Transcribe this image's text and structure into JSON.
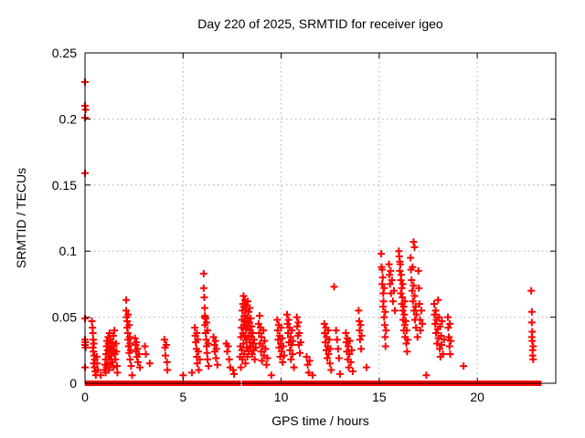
{
  "chart_data": {
    "type": "scatter",
    "title": "Day 220 of 2025, SRMTID for receiver igeo",
    "xlabel": "GPS time / hours",
    "ylabel": "SRMTID / TECUs",
    "xlim": [
      0,
      24
    ],
    "ylim": [
      0,
      0.25
    ],
    "xticks": {
      "values": [
        0,
        5,
        10,
        15,
        20
      ],
      "labels": [
        "0",
        "5",
        "10",
        "15",
        "20"
      ]
    },
    "yticks": {
      "values": [
        0,
        0.05,
        0.1,
        0.15,
        0.2,
        0.25
      ],
      "labels": [
        "0",
        "0.05",
        "0.1",
        "0.15",
        "0.2",
        "0.25"
      ]
    },
    "grid": {
      "on": true,
      "color": "#a8a8a8",
      "style": "dotted"
    },
    "legend": "none",
    "marker": {
      "shape": "plus",
      "color": "#ff0000",
      "size": 8,
      "stroke": 2
    },
    "baseline_value": 0,
    "baseline_segments": [
      [
        0.08,
        0.42
      ],
      [
        0.52,
        0.95
      ],
      [
        1.0,
        2.18
      ],
      [
        2.3,
        3.05
      ],
      [
        3.1,
        3.92
      ],
      [
        4.0,
        4.3
      ],
      [
        4.42,
        5.32
      ],
      [
        5.45,
        6.12
      ],
      [
        6.2,
        7.0
      ],
      [
        7.05,
        7.85
      ],
      [
        8.1,
        8.38
      ],
      [
        8.52,
        9.3
      ],
      [
        9.42,
        10.3
      ],
      [
        10.35,
        11.15
      ],
      [
        11.3,
        12.12
      ],
      [
        12.2,
        12.62
      ],
      [
        12.72,
        13.58
      ],
      [
        13.65,
        14.3
      ],
      [
        14.4,
        15.42
      ],
      [
        15.55,
        16.55
      ],
      [
        16.68,
        17.0
      ],
      [
        17.05,
        18.2
      ],
      [
        18.3,
        19.6
      ],
      [
        19.65,
        22.55
      ],
      [
        22.62,
        23.0
      ],
      [
        23.05,
        23.18
      ]
    ],
    "points": [
      [
        0.0,
        0.228
      ],
      [
        0.0,
        0.21
      ],
      [
        0.03,
        0.207
      ],
      [
        0.0,
        0.201
      ],
      [
        0.0,
        0.159
      ],
      [
        0.0,
        0.049
      ],
      [
        0.0,
        0.033
      ],
      [
        0.02,
        0.031
      ],
      [
        0.0,
        0.029
      ],
      [
        0.03,
        0.027
      ],
      [
        0.0,
        0.012
      ],
      [
        0.35,
        0.047
      ],
      [
        0.38,
        0.042
      ],
      [
        0.4,
        0.038
      ],
      [
        0.42,
        0.033
      ],
      [
        0.45,
        0.03
      ],
      [
        0.4,
        0.027
      ],
      [
        0.43,
        0.024
      ],
      [
        0.47,
        0.021
      ],
      [
        0.5,
        0.018
      ],
      [
        0.44,
        0.015
      ],
      [
        0.48,
        0.012
      ],
      [
        0.52,
        0.009
      ],
      [
        0.55,
        0.006
      ],
      [
        0.6,
        0.02
      ],
      [
        0.62,
        0.015
      ],
      [
        0.65,
        0.01
      ],
      [
        0.8,
        0.006
      ],
      [
        1.0,
        0.01
      ],
      [
        1.02,
        0.014
      ],
      [
        1.05,
        0.018
      ],
      [
        1.05,
        0.008
      ],
      [
        1.08,
        0.022
      ],
      [
        1.1,
        0.028
      ],
      [
        1.1,
        0.012
      ],
      [
        1.12,
        0.032
      ],
      [
        1.15,
        0.025
      ],
      [
        1.15,
        0.015
      ],
      [
        1.18,
        0.035
      ],
      [
        1.2,
        0.03
      ],
      [
        1.2,
        0.02
      ],
      [
        1.22,
        0.01
      ],
      [
        1.25,
        0.038
      ],
      [
        1.25,
        0.024
      ],
      [
        1.28,
        0.018
      ],
      [
        1.3,
        0.033
      ],
      [
        1.3,
        0.014
      ],
      [
        1.33,
        0.027
      ],
      [
        1.35,
        0.021
      ],
      [
        1.38,
        0.031
      ],
      [
        1.4,
        0.016
      ],
      [
        1.42,
        0.025
      ],
      [
        1.45,
        0.036
      ],
      [
        1.45,
        0.012
      ],
      [
        1.48,
        0.028
      ],
      [
        1.5,
        0.04
      ],
      [
        1.52,
        0.022
      ],
      [
        1.55,
        0.018
      ],
      [
        1.58,
        0.03
      ],
      [
        1.6,
        0.024
      ],
      [
        1.63,
        0.013
      ],
      [
        1.65,
        0.008
      ],
      [
        2.1,
        0.063
      ],
      [
        2.1,
        0.055
      ],
      [
        2.12,
        0.05
      ],
      [
        2.15,
        0.047
      ],
      [
        2.15,
        0.042
      ],
      [
        2.18,
        0.038
      ],
      [
        2.2,
        0.052
      ],
      [
        2.2,
        0.033
      ],
      [
        2.22,
        0.028
      ],
      [
        2.25,
        0.044
      ],
      [
        2.25,
        0.023
      ],
      [
        2.28,
        0.035
      ],
      [
        2.3,
        0.03
      ],
      [
        2.3,
        0.018
      ],
      [
        2.32,
        0.025
      ],
      [
        2.35,
        0.013
      ],
      [
        2.4,
        0.006
      ],
      [
        2.55,
        0.034
      ],
      [
        2.58,
        0.029
      ],
      [
        2.6,
        0.024
      ],
      [
        2.62,
        0.031
      ],
      [
        2.65,
        0.02
      ],
      [
        2.68,
        0.026
      ],
      [
        2.7,
        0.016
      ],
      [
        2.75,
        0.022
      ],
      [
        2.8,
        0.012
      ],
      [
        3.05,
        0.028
      ],
      [
        3.1,
        0.022
      ],
      [
        3.3,
        0.015
      ],
      [
        4.05,
        0.033
      ],
      [
        4.08,
        0.027
      ],
      [
        4.1,
        0.021
      ],
      [
        4.15,
        0.029
      ],
      [
        4.18,
        0.016
      ],
      [
        4.2,
        0.01
      ],
      [
        5.0,
        0.006
      ],
      [
        5.45,
        0.008
      ],
      [
        5.6,
        0.042
      ],
      [
        5.62,
        0.036
      ],
      [
        5.65,
        0.031
      ],
      [
        5.68,
        0.026
      ],
      [
        5.7,
        0.038
      ],
      [
        5.7,
        0.02
      ],
      [
        5.72,
        0.015
      ],
      [
        5.75,
        0.033
      ],
      [
        5.78,
        0.024
      ],
      [
        5.8,
        0.01
      ],
      [
        5.85,
        0.018
      ],
      [
        6.05,
        0.083
      ],
      [
        6.05,
        0.072
      ],
      [
        6.08,
        0.065
      ],
      [
        6.1,
        0.057
      ],
      [
        6.1,
        0.05
      ],
      [
        6.12,
        0.051
      ],
      [
        6.12,
        0.044
      ],
      [
        6.15,
        0.049
      ],
      [
        6.15,
        0.038
      ],
      [
        6.18,
        0.033
      ],
      [
        6.2,
        0.046
      ],
      [
        6.2,
        0.028
      ],
      [
        6.22,
        0.023
      ],
      [
        6.25,
        0.04
      ],
      [
        6.25,
        0.018
      ],
      [
        6.28,
        0.03
      ],
      [
        6.3,
        0.013
      ],
      [
        6.55,
        0.035
      ],
      [
        6.6,
        0.029
      ],
      [
        6.62,
        0.024
      ],
      [
        6.65,
        0.032
      ],
      [
        6.68,
        0.019
      ],
      [
        6.7,
        0.026
      ],
      [
        6.75,
        0.014
      ],
      [
        7.2,
        0.03
      ],
      [
        7.25,
        0.024
      ],
      [
        7.3,
        0.028
      ],
      [
        7.35,
        0.018
      ],
      [
        7.4,
        0.012
      ],
      [
        7.55,
        0.01
      ],
      [
        7.6,
        0.007
      ],
      [
        7.9,
        0.02
      ],
      [
        7.92,
        0.028
      ],
      [
        7.95,
        0.035
      ],
      [
        7.95,
        0.012
      ],
      [
        7.98,
        0.042
      ],
      [
        8.0,
        0.048
      ],
      [
        8.0,
        0.025
      ],
      [
        8.02,
        0.055
      ],
      [
        8.02,
        0.018
      ],
      [
        8.05,
        0.06
      ],
      [
        8.05,
        0.038
      ],
      [
        8.08,
        0.066
      ],
      [
        8.08,
        0.03
      ],
      [
        8.1,
        0.058
      ],
      [
        8.1,
        0.044
      ],
      [
        8.12,
        0.051
      ],
      [
        8.12,
        0.022
      ],
      [
        8.15,
        0.063
      ],
      [
        8.15,
        0.036
      ],
      [
        8.18,
        0.047
      ],
      [
        8.18,
        0.015
      ],
      [
        8.2,
        0.055
      ],
      [
        8.2,
        0.041
      ],
      [
        8.22,
        0.033
      ],
      [
        8.25,
        0.059
      ],
      [
        8.25,
        0.027
      ],
      [
        8.28,
        0.05
      ],
      [
        8.28,
        0.02
      ],
      [
        8.3,
        0.043
      ],
      [
        8.3,
        0.062
      ],
      [
        8.32,
        0.036
      ],
      [
        8.35,
        0.054
      ],
      [
        8.35,
        0.024
      ],
      [
        8.38,
        0.046
      ],
      [
        8.4,
        0.031
      ],
      [
        8.4,
        0.057
      ],
      [
        8.42,
        0.04
      ],
      [
        8.45,
        0.028
      ],
      [
        8.45,
        0.049
      ],
      [
        8.48,
        0.035
      ],
      [
        8.5,
        0.043
      ],
      [
        8.52,
        0.022
      ],
      [
        8.55,
        0.038
      ],
      [
        8.58,
        0.03
      ],
      [
        8.6,
        0.025
      ],
      [
        8.62,
        0.033
      ],
      [
        8.65,
        0.018
      ],
      [
        8.7,
        0.027
      ],
      [
        8.85,
        0.045
      ],
      [
        8.88,
        0.038
      ],
      [
        8.9,
        0.051
      ],
      [
        8.92,
        0.03
      ],
      [
        8.95,
        0.042
      ],
      [
        8.98,
        0.024
      ],
      [
        9.0,
        0.035
      ],
      [
        9.02,
        0.017
      ],
      [
        9.05,
        0.028
      ],
      [
        9.1,
        0.04
      ],
      [
        9.12,
        0.021
      ],
      [
        9.15,
        0.032
      ],
      [
        9.2,
        0.026
      ],
      [
        9.25,
        0.014
      ],
      [
        9.3,
        0.019
      ],
      [
        9.5,
        0.006
      ],
      [
        9.8,
        0.048
      ],
      [
        9.82,
        0.04
      ],
      [
        9.85,
        0.033
      ],
      [
        9.88,
        0.044
      ],
      [
        9.9,
        0.027
      ],
      [
        9.92,
        0.036
      ],
      [
        9.95,
        0.02
      ],
      [
        9.98,
        0.03
      ],
      [
        10.0,
        0.042
      ],
      [
        10.02,
        0.024
      ],
      [
        10.05,
        0.034
      ],
      [
        10.08,
        0.016
      ],
      [
        10.1,
        0.028
      ],
      [
        10.15,
        0.021
      ],
      [
        10.3,
        0.052
      ],
      [
        10.32,
        0.045
      ],
      [
        10.35,
        0.038
      ],
      [
        10.38,
        0.048
      ],
      [
        10.4,
        0.031
      ],
      [
        10.42,
        0.042
      ],
      [
        10.45,
        0.025
      ],
      [
        10.48,
        0.035
      ],
      [
        10.5,
        0.018
      ],
      [
        10.52,
        0.029
      ],
      [
        10.55,
        0.04
      ],
      [
        10.58,
        0.022
      ],
      [
        10.6,
        0.032
      ],
      [
        10.65,
        0.012
      ],
      [
        10.8,
        0.05
      ],
      [
        10.82,
        0.043
      ],
      [
        10.85,
        0.036
      ],
      [
        10.88,
        0.046
      ],
      [
        10.9,
        0.029
      ],
      [
        10.92,
        0.038
      ],
      [
        10.95,
        0.023
      ],
      [
        11.0,
        0.031
      ],
      [
        11.3,
        0.02
      ],
      [
        11.35,
        0.014
      ],
      [
        11.4,
        0.008
      ],
      [
        11.45,
        0.017
      ],
      [
        11.6,
        0.006
      ],
      [
        12.2,
        0.045
      ],
      [
        12.22,
        0.038
      ],
      [
        12.25,
        0.031
      ],
      [
        12.28,
        0.042
      ],
      [
        12.3,
        0.025
      ],
      [
        12.32,
        0.035
      ],
      [
        12.35,
        0.019
      ],
      [
        12.38,
        0.028
      ],
      [
        12.4,
        0.04
      ],
      [
        12.42,
        0.022
      ],
      [
        12.45,
        0.033
      ],
      [
        12.48,
        0.015
      ],
      [
        12.5,
        0.026
      ],
      [
        12.55,
        0.01
      ],
      [
        12.7,
        0.073
      ],
      [
        12.8,
        0.04
      ],
      [
        12.85,
        0.033
      ],
      [
        12.9,
        0.026
      ],
      [
        12.95,
        0.019
      ],
      [
        13.0,
        0.007
      ],
      [
        13.3,
        0.038
      ],
      [
        13.32,
        0.031
      ],
      [
        13.35,
        0.024
      ],
      [
        13.38,
        0.034
      ],
      [
        13.4,
        0.018
      ],
      [
        13.42,
        0.028
      ],
      [
        13.45,
        0.012
      ],
      [
        13.48,
        0.022
      ],
      [
        13.5,
        0.032
      ],
      [
        13.55,
        0.016
      ],
      [
        13.6,
        0.025
      ],
      [
        13.65,
        0.009
      ],
      [
        13.95,
        0.055
      ],
      [
        13.98,
        0.047
      ],
      [
        14.0,
        0.04
      ],
      [
        14.02,
        0.033
      ],
      [
        14.05,
        0.044
      ],
      [
        14.08,
        0.026
      ],
      [
        14.1,
        0.036
      ],
      [
        14.35,
        0.012
      ],
      [
        15.1,
        0.098
      ],
      [
        15.12,
        0.088
      ],
      [
        15.15,
        0.086
      ],
      [
        15.15,
        0.075
      ],
      [
        15.18,
        0.08
      ],
      [
        15.2,
        0.068
      ],
      [
        15.2,
        0.058
      ],
      [
        15.22,
        0.062
      ],
      [
        15.25,
        0.05
      ],
      [
        15.25,
        0.072
      ],
      [
        15.28,
        0.044
      ],
      [
        15.3,
        0.054
      ],
      [
        15.3,
        0.035
      ],
      [
        15.32,
        0.028
      ],
      [
        15.35,
        0.04
      ],
      [
        15.5,
        0.09
      ],
      [
        15.52,
        0.082
      ],
      [
        15.55,
        0.075
      ],
      [
        15.58,
        0.085
      ],
      [
        15.6,
        0.068
      ],
      [
        15.65,
        0.078
      ],
      [
        15.7,
        0.062
      ],
      [
        15.75,
        0.07
      ],
      [
        15.8,
        0.055
      ],
      [
        16.0,
        0.1
      ],
      [
        16.02,
        0.096
      ],
      [
        16.05,
        0.092
      ],
      [
        16.05,
        0.085
      ],
      [
        16.08,
        0.09
      ],
      [
        16.1,
        0.078
      ],
      [
        16.1,
        0.068
      ],
      [
        16.12,
        0.082
      ],
      [
        16.15,
        0.072
      ],
      [
        16.15,
        0.06
      ],
      [
        16.18,
        0.065
      ],
      [
        16.2,
        0.055
      ],
      [
        16.2,
        0.075
      ],
      [
        16.22,
        0.048
      ],
      [
        16.25,
        0.058
      ],
      [
        16.25,
        0.04
      ],
      [
        16.28,
        0.052
      ],
      [
        16.3,
        0.044
      ],
      [
        16.3,
        0.062
      ],
      [
        16.32,
        0.035
      ],
      [
        16.35,
        0.047
      ],
      [
        16.38,
        0.03
      ],
      [
        16.4,
        0.04
      ],
      [
        16.42,
        0.024
      ],
      [
        16.45,
        0.033
      ],
      [
        16.6,
        0.095
      ],
      [
        16.62,
        0.086
      ],
      [
        16.65,
        0.078
      ],
      [
        16.68,
        0.07
      ],
      [
        16.7,
        0.088
      ],
      [
        16.72,
        0.062
      ],
      [
        16.75,
        0.107
      ],
      [
        16.75,
        0.074
      ],
      [
        16.78,
        0.055
      ],
      [
        16.8,
        0.103
      ],
      [
        16.8,
        0.066
      ],
      [
        16.82,
        0.048
      ],
      [
        16.85,
        0.058
      ],
      [
        16.88,
        0.042
      ],
      [
        16.9,
        0.052
      ],
      [
        16.95,
        0.035
      ],
      [
        17.0,
        0.085
      ],
      [
        17.02,
        0.072
      ],
      [
        17.05,
        0.06
      ],
      [
        17.08,
        0.048
      ],
      [
        17.1,
        0.04
      ],
      [
        17.15,
        0.055
      ],
      [
        17.2,
        0.045
      ],
      [
        17.4,
        0.006
      ],
      [
        17.8,
        0.06
      ],
      [
        17.82,
        0.052
      ],
      [
        17.85,
        0.045
      ],
      [
        17.88,
        0.055
      ],
      [
        17.9,
        0.038
      ],
      [
        17.92,
        0.048
      ],
      [
        17.95,
        0.03
      ],
      [
        17.98,
        0.041
      ],
      [
        18.0,
        0.063
      ],
      [
        18.02,
        0.034
      ],
      [
        18.05,
        0.05
      ],
      [
        18.08,
        0.026
      ],
      [
        18.1,
        0.043
      ],
      [
        18.12,
        0.02
      ],
      [
        18.15,
        0.036
      ],
      [
        18.18,
        0.029
      ],
      [
        18.2,
        0.047
      ],
      [
        18.25,
        0.022
      ],
      [
        18.3,
        0.033
      ],
      [
        18.5,
        0.05
      ],
      [
        18.52,
        0.042
      ],
      [
        18.55,
        0.035
      ],
      [
        18.58,
        0.028
      ],
      [
        18.6,
        0.045
      ],
      [
        18.62,
        0.022
      ],
      [
        18.65,
        0.032
      ],
      [
        19.3,
        0.013
      ],
      [
        22.75,
        0.07
      ],
      [
        22.78,
        0.054
      ],
      [
        22.78,
        0.046
      ],
      [
        22.78,
        0.035
      ],
      [
        22.8,
        0.039
      ],
      [
        22.8,
        0.032
      ],
      [
        22.82,
        0.025
      ],
      [
        22.82,
        0.021
      ],
      [
        22.85,
        0.028
      ],
      [
        22.85,
        0.018
      ]
    ]
  }
}
